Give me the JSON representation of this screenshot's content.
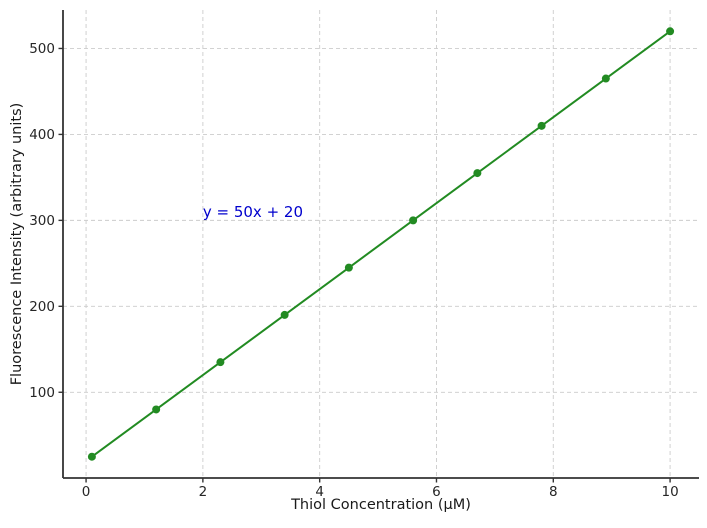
{
  "chart_data": {
    "type": "line",
    "title": "",
    "xlabel": "Thiol Concentration (μM)",
    "ylabel": "Fluorescence Intensity (arbitrary units)",
    "x": [
      0.1,
      1.2,
      2.3,
      3.4,
      4.5,
      5.6,
      6.7,
      7.8,
      8.9,
      10.0
    ],
    "y": [
      25,
      80,
      135,
      190,
      245,
      300,
      355,
      410,
      465,
      520
    ],
    "equation": "y = 50x + 20",
    "annotation": {
      "text": "y = 50x + 20",
      "x": 2.0,
      "y": 310,
      "color": "#0000CD"
    },
    "x_ticks": [
      0,
      2,
      4,
      6,
      8,
      10
    ],
    "y_ticks": [
      100,
      200,
      300,
      400,
      500
    ],
    "xlim": [
      -0.395,
      10.495
    ],
    "ylim": [
      0.25,
      544.75
    ],
    "grid": true,
    "grid_style": "dashed",
    "grid_color": "#cccccc",
    "line_color": "#228B22",
    "marker": "circle",
    "marker_size": 4,
    "line_width": 2,
    "axis_color": "#333333",
    "tick_label_color": "#262626",
    "background": "#ffffff",
    "legend": null
  }
}
